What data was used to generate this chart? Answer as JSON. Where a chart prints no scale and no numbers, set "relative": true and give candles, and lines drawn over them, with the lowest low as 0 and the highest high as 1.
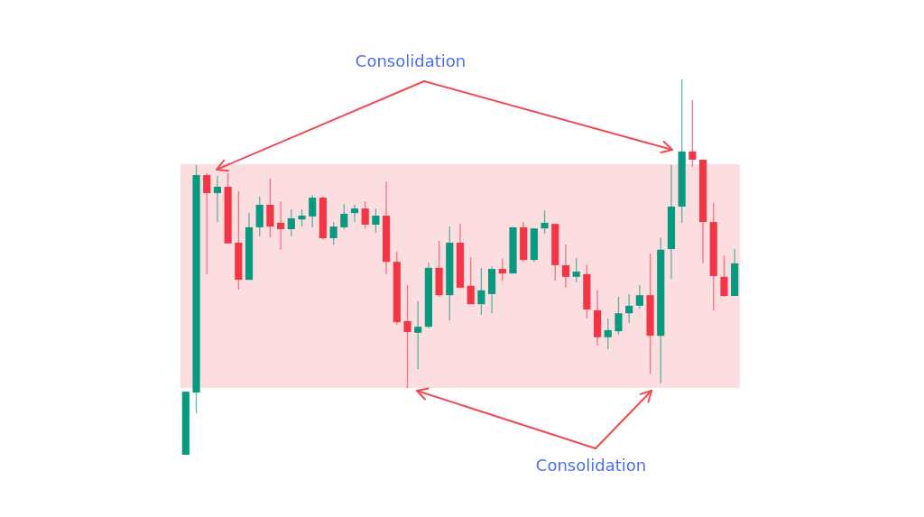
{
  "chart_data": {
    "type": "candlestick",
    "relative": true,
    "tick_labels": false,
    "categories": [
      null,
      null,
      null,
      null,
      null,
      null,
      null,
      null,
      null,
      null,
      null,
      null,
      null,
      null,
      null,
      null,
      null,
      null,
      null,
      null,
      null,
      null,
      null,
      null,
      null,
      null,
      null,
      null,
      null,
      null,
      null,
      null,
      null,
      null,
      null,
      null,
      null,
      null,
      null,
      null,
      null,
      null,
      null,
      null,
      null,
      null,
      null,
      null,
      null,
      null,
      null,
      null,
      null
    ],
    "ohlc": [
      [
        0,
        0.168,
        0,
        0.168
      ],
      [
        0.166,
        0.772,
        0.111,
        0.745
      ],
      [
        0.745,
        0.75,
        0.481,
        0.697
      ],
      [
        0.697,
        0.743,
        0.62,
        0.714
      ],
      [
        0.714,
        0.75,
        0.563,
        0.563
      ],
      [
        0.565,
        0.702,
        0.44,
        0.466
      ],
      [
        0.466,
        0.644,
        0.466,
        0.606
      ],
      [
        0.606,
        0.688,
        0.582,
        0.666
      ],
      [
        0.666,
        0.736,
        0.579,
        0.608
      ],
      [
        0.618,
        0.675,
        0.546,
        0.601
      ],
      [
        0.601,
        0.654,
        0.582,
        0.63
      ],
      [
        0.627,
        0.654,
        0.608,
        0.637
      ],
      [
        0.635,
        0.692,
        0.606,
        0.685
      ],
      [
        0.685,
        0.688,
        0.572,
        0.577
      ],
      [
        0.577,
        0.62,
        0.56,
        0.608
      ],
      [
        0.606,
        0.668,
        0.601,
        0.642
      ],
      [
        0.644,
        0.666,
        0.62,
        0.656
      ],
      [
        0.656,
        0.675,
        0.603,
        0.613
      ],
      [
        0.613,
        0.656,
        0.591,
        0.637
      ],
      [
        0.637,
        0.728,
        0.481,
        0.514
      ],
      [
        0.514,
        0.541,
        0.346,
        0.353
      ],
      [
        0.356,
        0.452,
        0.178,
        0.327
      ],
      [
        0.325,
        0.409,
        0.228,
        0.341
      ],
      [
        0.341,
        0.512,
        0.337,
        0.498
      ],
      [
        0.498,
        0.57,
        0.421,
        0.425
      ],
      [
        0.425,
        0.608,
        0.358,
        0.565
      ],
      [
        0.565,
        0.615,
        0.445,
        0.445
      ],
      [
        0.45,
        0.526,
        0.401,
        0.401
      ],
      [
        0.401,
        0.498,
        0.373,
        0.438
      ],
      [
        0.428,
        0.502,
        0.377,
        0.495
      ],
      [
        0.495,
        0.522,
        0.464,
        0.483
      ],
      [
        0.483,
        0.606,
        0.483,
        0.606
      ],
      [
        0.606,
        0.62,
        0.514,
        0.519
      ],
      [
        0.519,
        0.603,
        0.514,
        0.603
      ],
      [
        0.603,
        0.651,
        0.589,
        0.618
      ],
      [
        0.615,
        0.615,
        0.464,
        0.505
      ],
      [
        0.505,
        0.56,
        0.445,
        0.474
      ],
      [
        0.474,
        0.524,
        0.459,
        0.488
      ],
      [
        0.481,
        0.507,
        0.363,
        0.387
      ],
      [
        0.385,
        0.438,
        0.291,
        0.313
      ],
      [
        0.313,
        0.363,
        0.281,
        0.332
      ],
      [
        0.329,
        0.421,
        0.32,
        0.377
      ],
      [
        0.377,
        0.428,
        0.351,
        0.397
      ],
      [
        0.397,
        0.452,
        0.389,
        0.425
      ],
      [
        0.425,
        0.536,
        0.216,
        0.317
      ],
      [
        0.317,
        0.579,
        0.19,
        0.546
      ],
      [
        0.548,
        0.772,
        0.469,
        0.661
      ],
      [
        0.661,
        1,
        0.618,
        0.808
      ],
      [
        0.808,
        0.945,
        0.767,
        0.786
      ],
      [
        0.786,
        0.786,
        0.51,
        0.62
      ],
      [
        0.62,
        0.671,
        0.385,
        0.476
      ],
      [
        0.474,
        0.531,
        0.421,
        0.423
      ],
      [
        0.423,
        0.548,
        0.423,
        0.51
      ]
    ],
    "colors": [
      "#089981",
      "#089981",
      "#f23645",
      "#089981",
      "#f23645",
      "#f23645",
      "#089981",
      "#089981",
      "#f23645",
      "#f23645",
      "#089981",
      "#089981",
      "#089981",
      "#f23645",
      "#089981",
      "#089981",
      "#089981",
      "#f23645",
      "#089981",
      "#f23645",
      "#f23645",
      "#f23645",
      "#089981",
      "#089981",
      "#f23645",
      "#089981",
      "#f23645",
      "#f23645",
      "#089981",
      "#089981",
      "#f23645",
      "#089981",
      "#f23645",
      "#089981",
      "#089981",
      "#f23645",
      "#f23645",
      "#089981",
      "#f23645",
      "#f23645",
      "#089981",
      "#089981",
      "#089981",
      "#089981",
      "#f23645",
      "#089981",
      "#089981",
      "#089981",
      "#f23645",
      "#f23645",
      "#f23645",
      "#f23645",
      "#089981"
    ],
    "bands": [
      {
        "axis": "y",
        "from": 0.178,
        "to": 0.774,
        "color": "#fcdde0"
      }
    ],
    "annotations": [
      "Consolidation",
      "Consolidation"
    ]
  }
}
